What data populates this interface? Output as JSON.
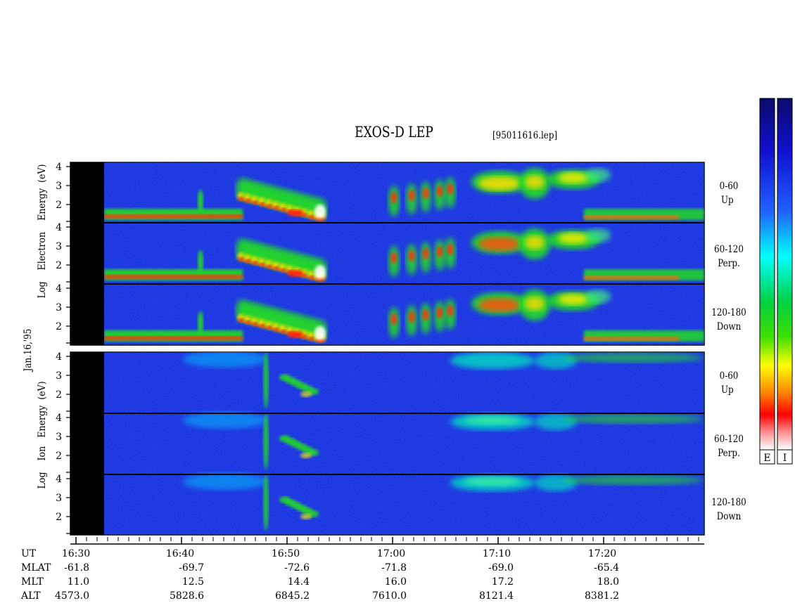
{
  "chart_data": {
    "type": "heatmap",
    "title": "EXOS-D LEP",
    "file": "[95011616.lep]",
    "date": "Jan.16,'95",
    "electron_ylabel": [
      "Log",
      "Electron",
      "Energy",
      "(eV)"
    ],
    "ion_ylabel": [
      "Log",
      "Ion",
      "Energy",
      "(eV)"
    ],
    "y_ticks": [
      "4",
      "3",
      "2"
    ],
    "channels": [
      {
        "angle": "0-60",
        "dir": "Up"
      },
      {
        "angle": "60-120",
        "dir": "Perp."
      },
      {
        "angle": "120-180",
        "dir": "Down"
      }
    ],
    "colorbar_labels": [
      "E",
      "I"
    ],
    "x_ticks": [
      "16:30",
      "16:40",
      "16:50",
      "17:00",
      "17:10",
      "17:20"
    ],
    "ephemeris": [
      {
        "name": "UT",
        "values": [
          "16:30",
          "16:40",
          "16:50",
          "17:00",
          "17:10",
          "17:20"
        ]
      },
      {
        "name": "MLAT",
        "values": [
          "-61.8",
          "-69.7",
          "-72.6",
          "-71.8",
          "-69.0",
          "-65.4"
        ]
      },
      {
        "name": "MLT",
        "values": [
          "11.0",
          "12.5",
          "14.4",
          "16.0",
          "17.2",
          "18.0"
        ]
      },
      {
        "name": "ALT",
        "values": [
          "4573.0",
          "5828.6",
          "6845.2",
          "7610.0",
          "8121.4",
          "8381.2"
        ]
      }
    ],
    "colors": {
      "background": "#0c1cd8",
      "green": "#22dd22",
      "yellow": "#f0f000",
      "red": "#ff1010",
      "white": "#ffffff"
    }
  }
}
